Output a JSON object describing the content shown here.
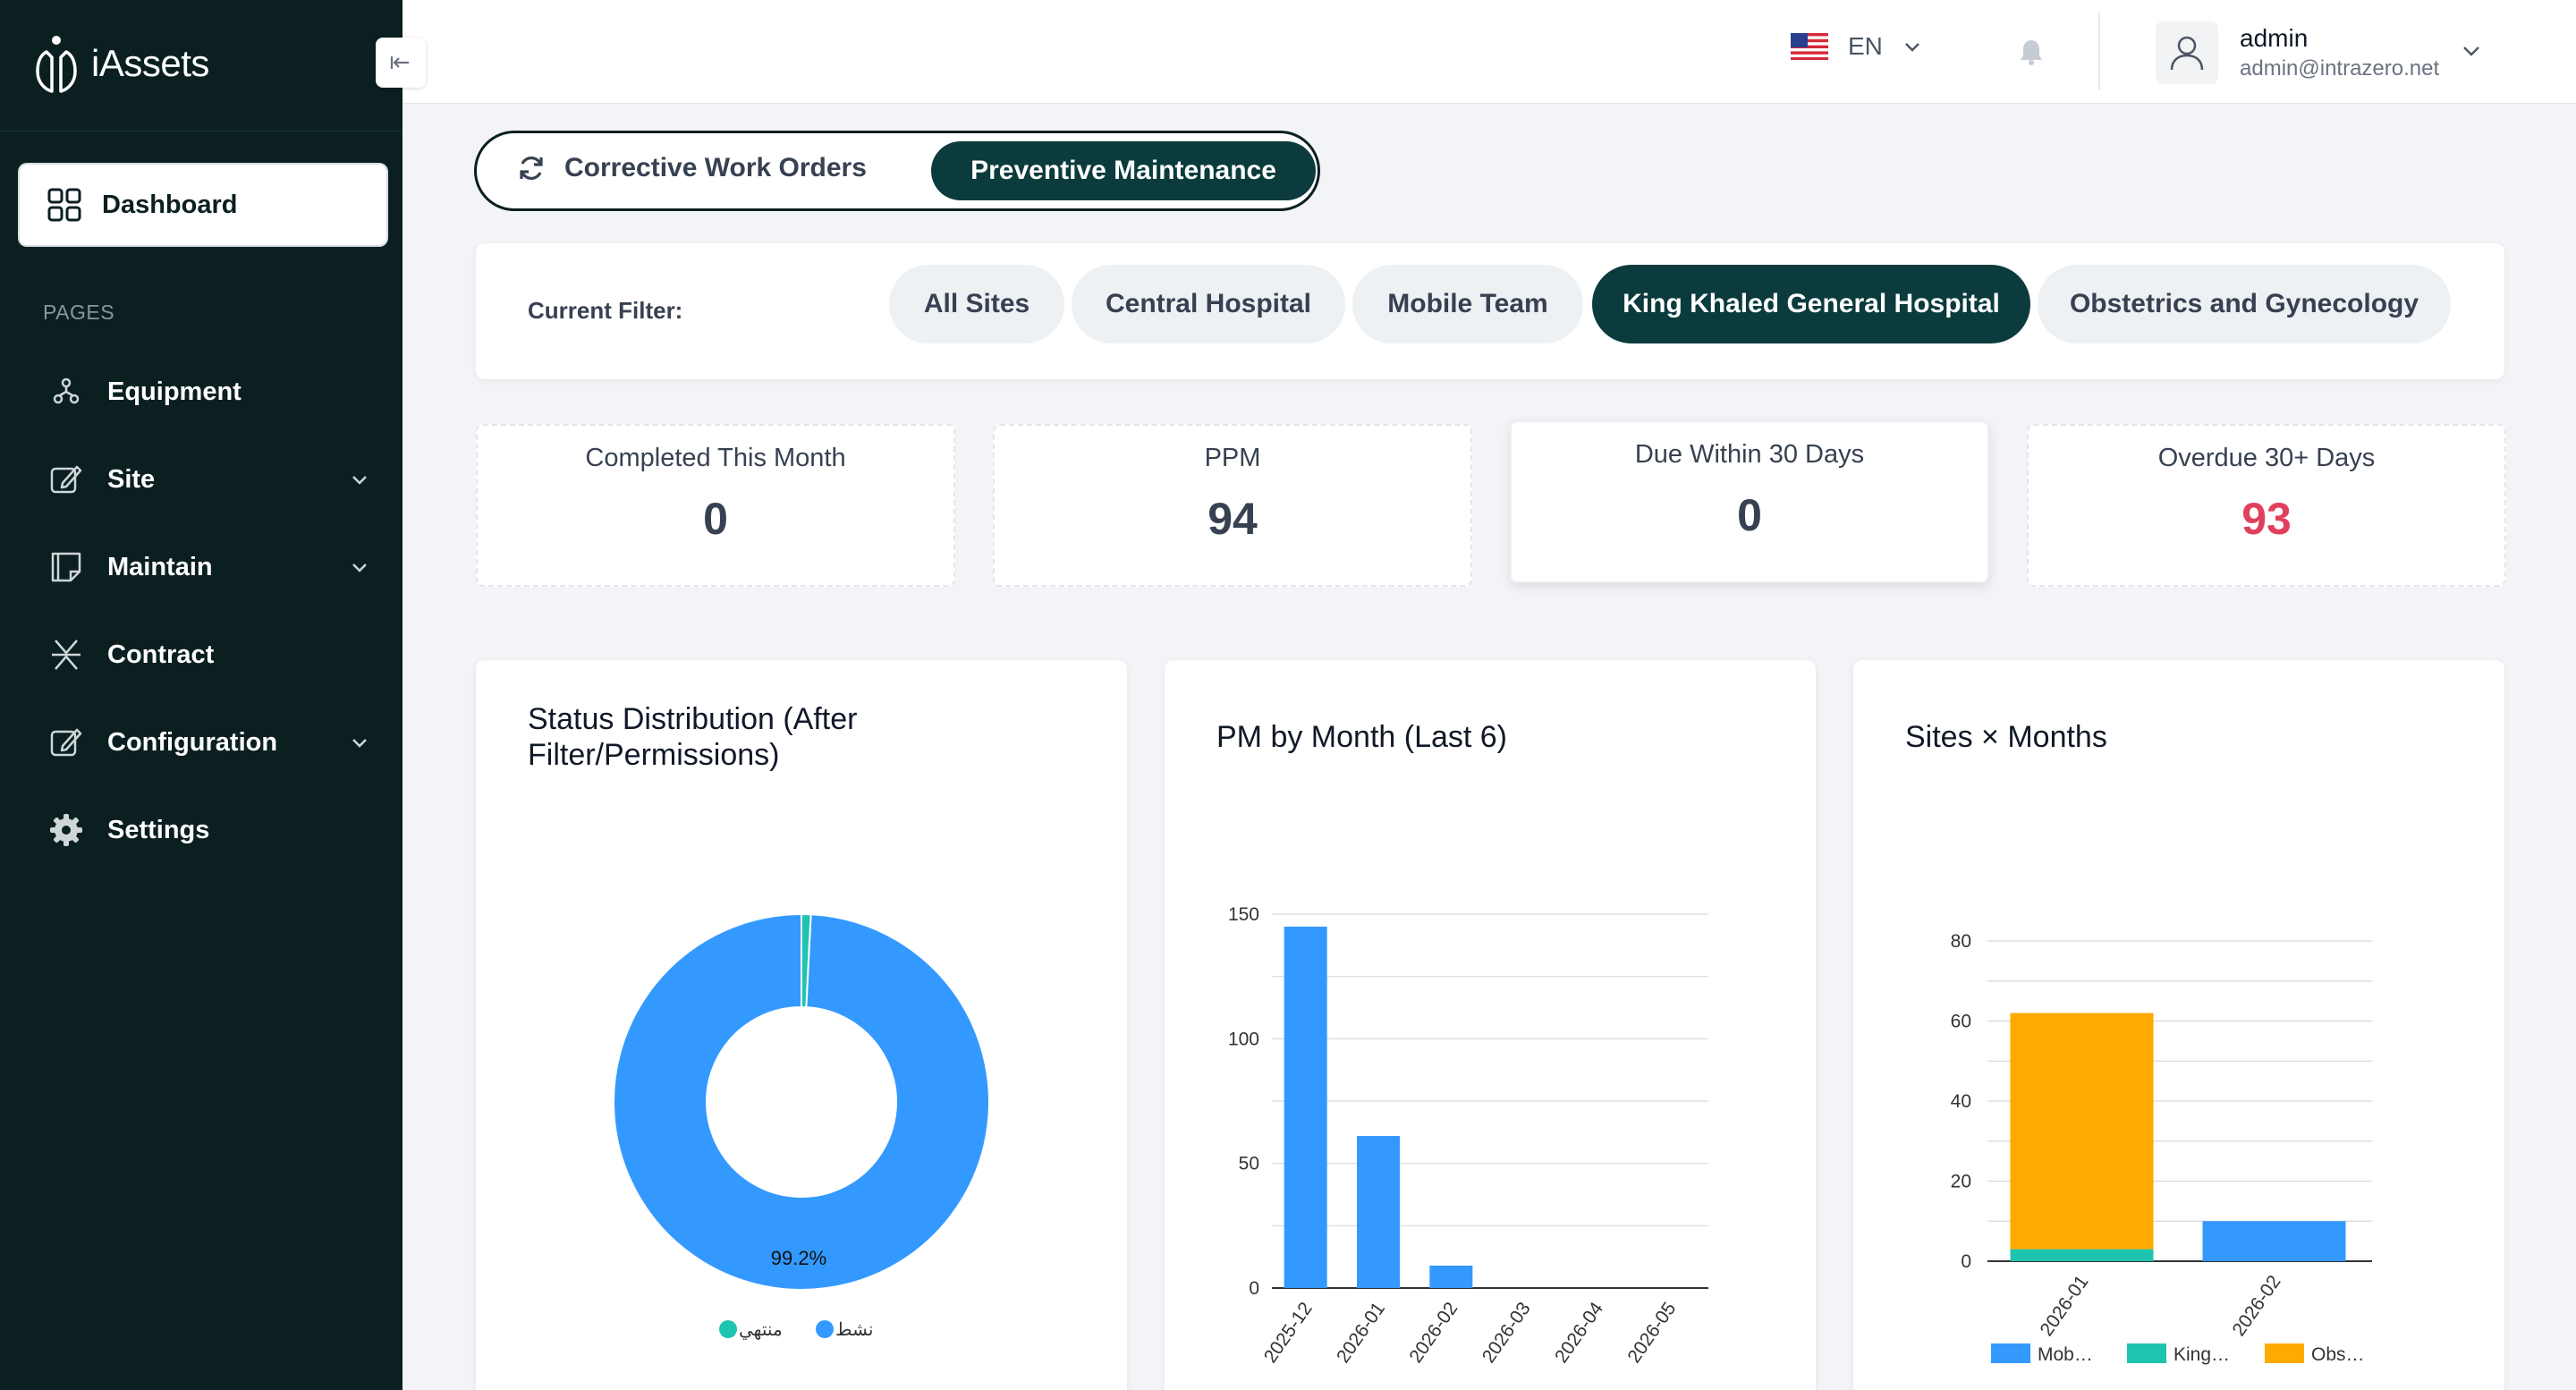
{
  "app": {
    "name": "iAssets"
  },
  "sidebar": {
    "active": {
      "label": "Dashboard",
      "icon": "grid-icon"
    },
    "section": "PAGES",
    "items": [
      {
        "label": "Equipment",
        "icon": "equipment-icon",
        "has_children": false
      },
      {
        "label": "Site",
        "icon": "edit-icon",
        "has_children": true
      },
      {
        "label": "Maintain",
        "icon": "note-icon",
        "has_children": true
      },
      {
        "label": "Contract",
        "icon": "contract-icon",
        "has_children": false
      },
      {
        "label": "Configuration",
        "icon": "edit-icon",
        "has_children": true
      },
      {
        "label": "Settings",
        "icon": "gear-icon",
        "has_children": false
      }
    ]
  },
  "header": {
    "language": "EN",
    "user": {
      "name": "admin",
      "email": "admin@intrazero.net"
    }
  },
  "toggle": {
    "corrective": "Corrective Work Orders",
    "preventive": "Preventive Maintenance",
    "active": "preventive"
  },
  "filter": {
    "label": "Current Filter:",
    "options": [
      "All Sites",
      "Central Hospital",
      "Mobile Team",
      "King Khaled General Hospital",
      "Obstetrics and Gynecology"
    ],
    "active_index": 3
  },
  "stats": [
    {
      "title": "Completed This Month",
      "value": "0"
    },
    {
      "title": "PPM",
      "value": "94"
    },
    {
      "title": "Due Within 30 Days",
      "value": "0"
    },
    {
      "title": "Overdue 30+ Days",
      "value": "93",
      "color": "#e0405e"
    }
  ],
  "colors": {
    "sidebar": "#0b1f21",
    "accent": "#0b3b3c",
    "blue": "#3399ff",
    "teal": "#1fc4b0",
    "orange": "#ffaa00",
    "danger": "#e0405e"
  },
  "chart_data": [
    {
      "type": "pie",
      "title": "Status Distribution (After Filter/Permissions)",
      "slices": [
        {
          "label": "نشط",
          "value": 99.2,
          "color": "#3399ff"
        },
        {
          "label": "منتهي",
          "value": 0.8,
          "color": "#1fc4b0"
        }
      ],
      "data_label": "99.2%",
      "legend": "bottom"
    },
    {
      "type": "bar",
      "title": "PM by Month (Last 6)",
      "categories": [
        "2025-12",
        "2026-01",
        "2026-02",
        "2026-03",
        "2026-04",
        "2026-05"
      ],
      "values": [
        145,
        61,
        9,
        0,
        0,
        0
      ],
      "ylim": [
        0,
        150
      ],
      "yticks": [
        0,
        50,
        100,
        150
      ],
      "grid": true
    },
    {
      "type": "bar",
      "title": "Sites × Months",
      "stacked": true,
      "categories": [
        "2026-01",
        "2026-02"
      ],
      "series": [
        {
          "name": "Mob…",
          "values": [
            0,
            10
          ],
          "color": "#3399ff"
        },
        {
          "name": "King…",
          "values": [
            3,
            0
          ],
          "color": "#1fc4b0"
        },
        {
          "name": "Obs…",
          "values": [
            59,
            0
          ],
          "color": "#ffaa00"
        }
      ],
      "ylim": [
        0,
        80
      ],
      "yticks": [
        0,
        20,
        40,
        60,
        80
      ],
      "grid": true,
      "legend": "bottom"
    }
  ]
}
